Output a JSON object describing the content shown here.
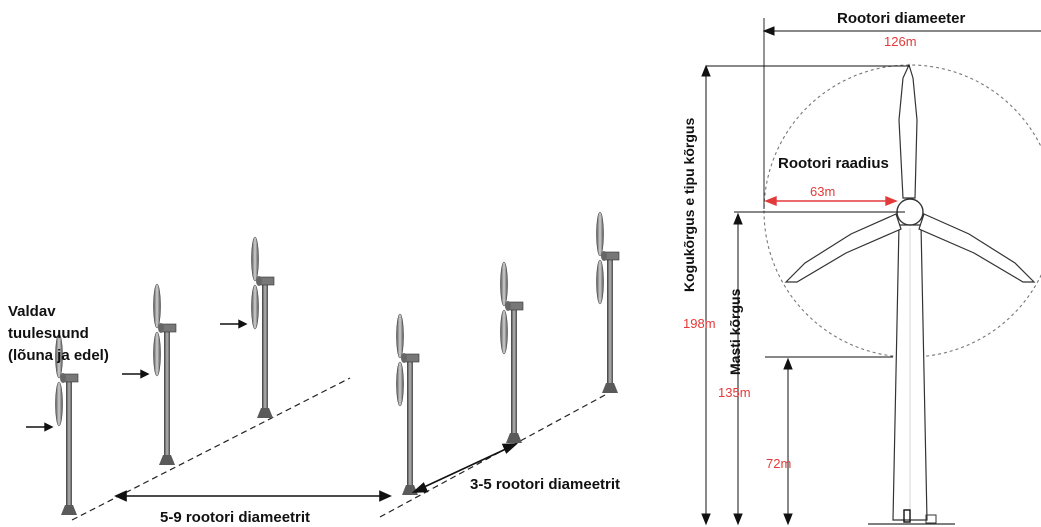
{
  "left_diagram": {
    "wind_label_line1": "Valdav",
    "wind_label_line2": "tuulesuund",
    "wind_label_line3": "(lõuna ja edel)",
    "row_spacing_label": "5-9 rootori diameetrit",
    "turbine_spacing_label": "3-5 rootori diameetrit"
  },
  "right_diagram": {
    "rotor_diameter_label": "Rootori diameeter",
    "rotor_diameter_value": "126m",
    "rotor_radius_label": "Rootori raadius",
    "rotor_radius_value": "63m",
    "total_height_label": "Kogukõrgus e tipu kõrgus",
    "total_height_value": "198m",
    "mast_height_label": "Masti kõrgus",
    "mast_height_value": "135m",
    "lower_height_value": "72m"
  },
  "colors": {
    "dimension_red": "#e23a3a",
    "turbine_gray": "#6f6f6f",
    "text": "#111111"
  }
}
